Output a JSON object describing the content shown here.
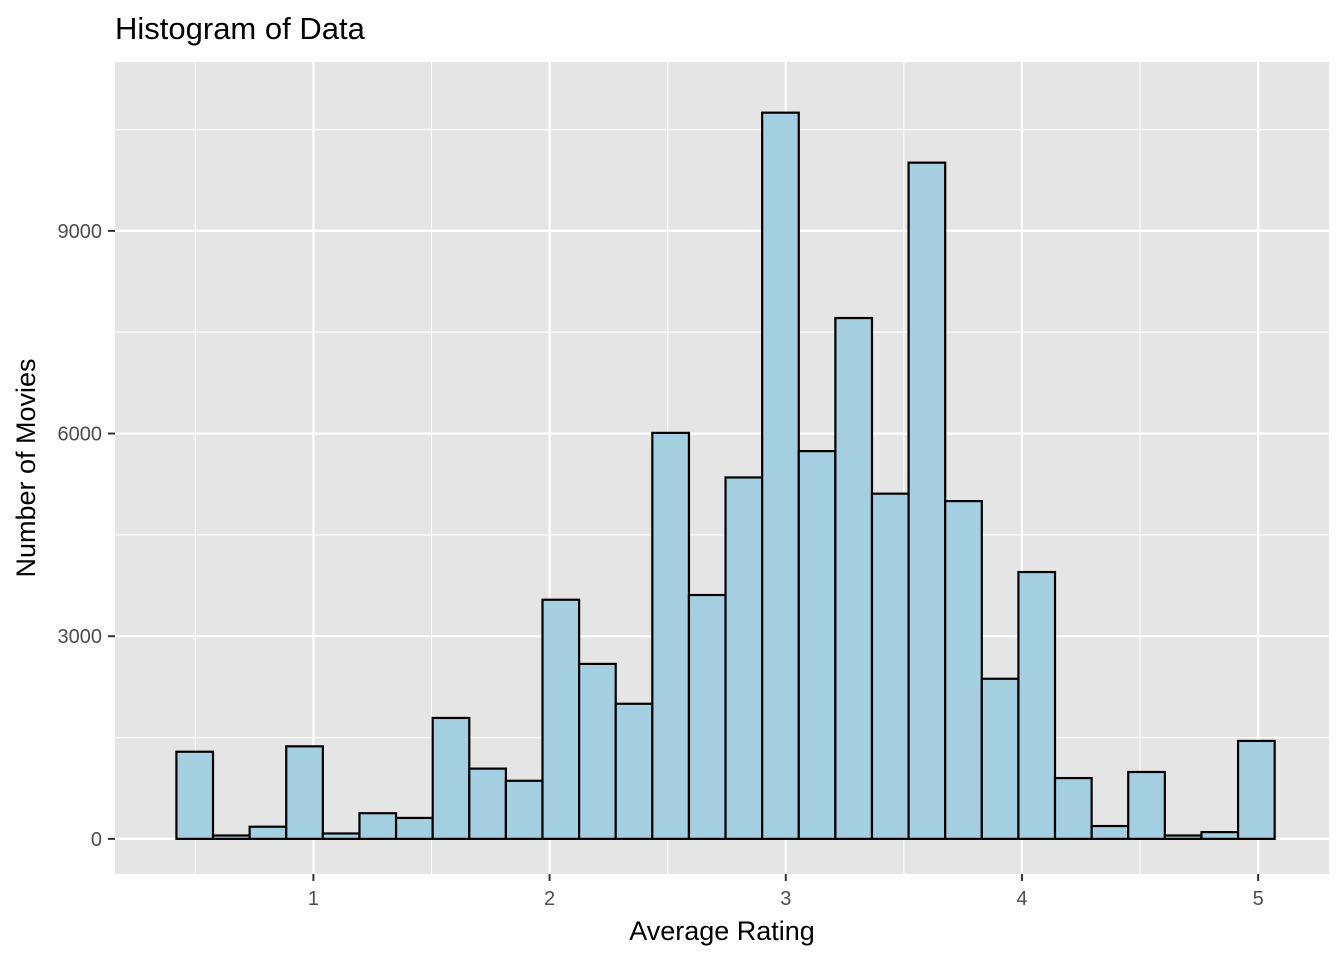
{
  "chart_data": {
    "type": "bar",
    "title": "Histogram of Data",
    "xlabel": "Average Rating",
    "ylabel": "Number of Movies",
    "x_ticks": [
      1,
      2,
      3,
      4,
      5
    ],
    "y_ticks": [
      0,
      3000,
      6000,
      9000
    ],
    "xlim": [
      0.16,
      5.3
    ],
    "ylim": [
      -520,
      11500
    ],
    "bin_start": 0.42,
    "bin_width": 0.155,
    "values": [
      1290,
      50,
      180,
      1370,
      80,
      380,
      310,
      1790,
      1040,
      860,
      3540,
      2590,
      2000,
      6010,
      3610,
      5350,
      10750,
      5740,
      7710,
      5110,
      10010,
      5000,
      2370,
      3950,
      900,
      190,
      990,
      50,
      100,
      1450
    ],
    "colors": {
      "panel": "#e5e5e5",
      "bar_fill": "#a3cfe0",
      "bar_outline": "#000000"
    },
    "grid": true,
    "legend": "none"
  }
}
